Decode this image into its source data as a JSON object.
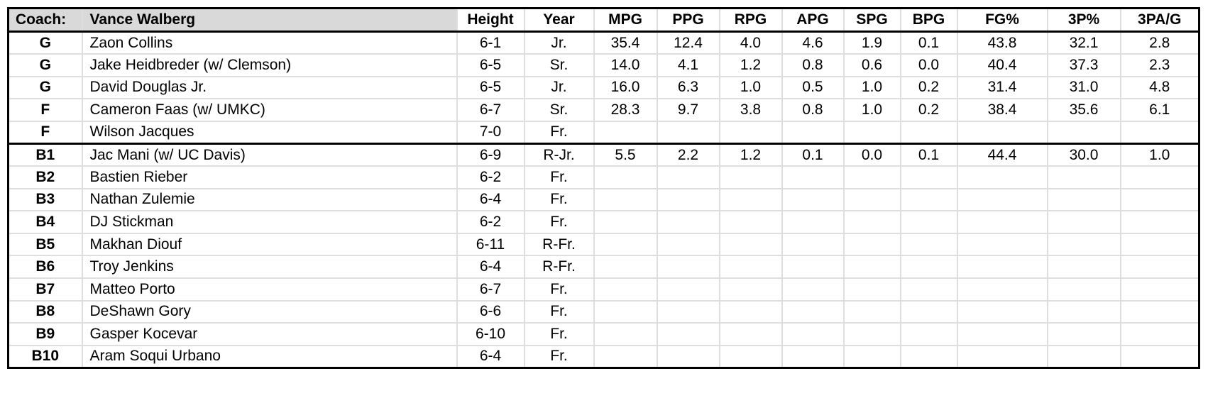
{
  "colors": {
    "header_fill": "#d9d9d9",
    "grid_line": "#dedede",
    "section_border": "#000000",
    "text": "#000000",
    "background": "#ffffff"
  },
  "header": {
    "coach_label": "Coach:",
    "coach_name": "Vance Walberg",
    "stat_columns": [
      "Height",
      "Year",
      "MPG",
      "PPG",
      "RPG",
      "APG",
      "SPG",
      "BPG",
      "FG%",
      "3P%",
      "3PA/G"
    ]
  },
  "rows": [
    {
      "position": "G",
      "name": "Zaon Collins",
      "height": "6-1",
      "year": "Jr.",
      "stats": [
        "35.4",
        "12.4",
        "4.0",
        "4.6",
        "1.9",
        "0.1",
        "43.8",
        "32.1",
        "2.8"
      ],
      "section_break_after": false
    },
    {
      "position": "G",
      "name": "Jake Heidbreder (w/ Clemson)",
      "height": "6-5",
      "year": "Sr.",
      "stats": [
        "14.0",
        "4.1",
        "1.2",
        "0.8",
        "0.6",
        "0.0",
        "40.4",
        "37.3",
        "2.3"
      ],
      "section_break_after": false
    },
    {
      "position": "G",
      "name": "David Douglas Jr.",
      "height": "6-5",
      "year": "Jr.",
      "stats": [
        "16.0",
        "6.3",
        "1.0",
        "0.5",
        "1.0",
        "0.2",
        "31.4",
        "31.0",
        "4.8"
      ],
      "section_break_after": false
    },
    {
      "position": "F",
      "name": "Cameron Faas (w/ UMKC)",
      "height": "6-7",
      "year": "Sr.",
      "stats": [
        "28.3",
        "9.7",
        "3.8",
        "0.8",
        "1.0",
        "0.2",
        "38.4",
        "35.6",
        "6.1"
      ],
      "section_break_after": false
    },
    {
      "position": "F",
      "name": "Wilson Jacques",
      "height": "7-0",
      "year": "Fr.",
      "stats": [
        "",
        "",
        "",
        "",
        "",
        "",
        "",
        "",
        ""
      ],
      "section_break_after": true
    },
    {
      "position": "B1",
      "name": "Jac Mani (w/ UC Davis)",
      "height": "6-9",
      "year": "R-Jr.",
      "stats": [
        "5.5",
        "2.2",
        "1.2",
        "0.1",
        "0.0",
        "0.1",
        "44.4",
        "30.0",
        "1.0"
      ],
      "section_break_after": false
    },
    {
      "position": "B2",
      "name": "Bastien Rieber",
      "height": "6-2",
      "year": "Fr.",
      "stats": [
        "",
        "",
        "",
        "",
        "",
        "",
        "",
        "",
        ""
      ],
      "section_break_after": false
    },
    {
      "position": "B3",
      "name": "Nathan Zulemie",
      "height": "6-4",
      "year": "Fr.",
      "stats": [
        "",
        "",
        "",
        "",
        "",
        "",
        "",
        "",
        ""
      ],
      "section_break_after": false
    },
    {
      "position": "B4",
      "name": "DJ Stickman",
      "height": "6-2",
      "year": "Fr.",
      "stats": [
        "",
        "",
        "",
        "",
        "",
        "",
        "",
        "",
        ""
      ],
      "section_break_after": false
    },
    {
      "position": "B5",
      "name": "Makhan Diouf",
      "height": "6-11",
      "year": "R-Fr.",
      "stats": [
        "",
        "",
        "",
        "",
        "",
        "",
        "",
        "",
        ""
      ],
      "section_break_after": false
    },
    {
      "position": "B6",
      "name": "Troy Jenkins",
      "height": "6-4",
      "year": "R-Fr.",
      "stats": [
        "",
        "",
        "",
        "",
        "",
        "",
        "",
        "",
        ""
      ],
      "section_break_after": false
    },
    {
      "position": "B7",
      "name": "Matteo Porto",
      "height": "6-7",
      "year": "Fr.",
      "stats": [
        "",
        "",
        "",
        "",
        "",
        "",
        "",
        "",
        ""
      ],
      "section_break_after": false
    },
    {
      "position": "B8",
      "name": "DeShawn Gory",
      "height": "6-6",
      "year": "Fr.",
      "stats": [
        "",
        "",
        "",
        "",
        "",
        "",
        "",
        "",
        ""
      ],
      "section_break_after": false
    },
    {
      "position": "B9",
      "name": "Gasper Kocevar",
      "height": "6-10",
      "year": "Fr.",
      "stats": [
        "",
        "",
        "",
        "",
        "",
        "",
        "",
        "",
        ""
      ],
      "section_break_after": false
    },
    {
      "position": "B10",
      "name": "Aram Soqui Urbano",
      "height": "6-4",
      "year": "Fr.",
      "stats": [
        "",
        "",
        "",
        "",
        "",
        "",
        "",
        "",
        ""
      ],
      "section_break_after": false
    }
  ]
}
